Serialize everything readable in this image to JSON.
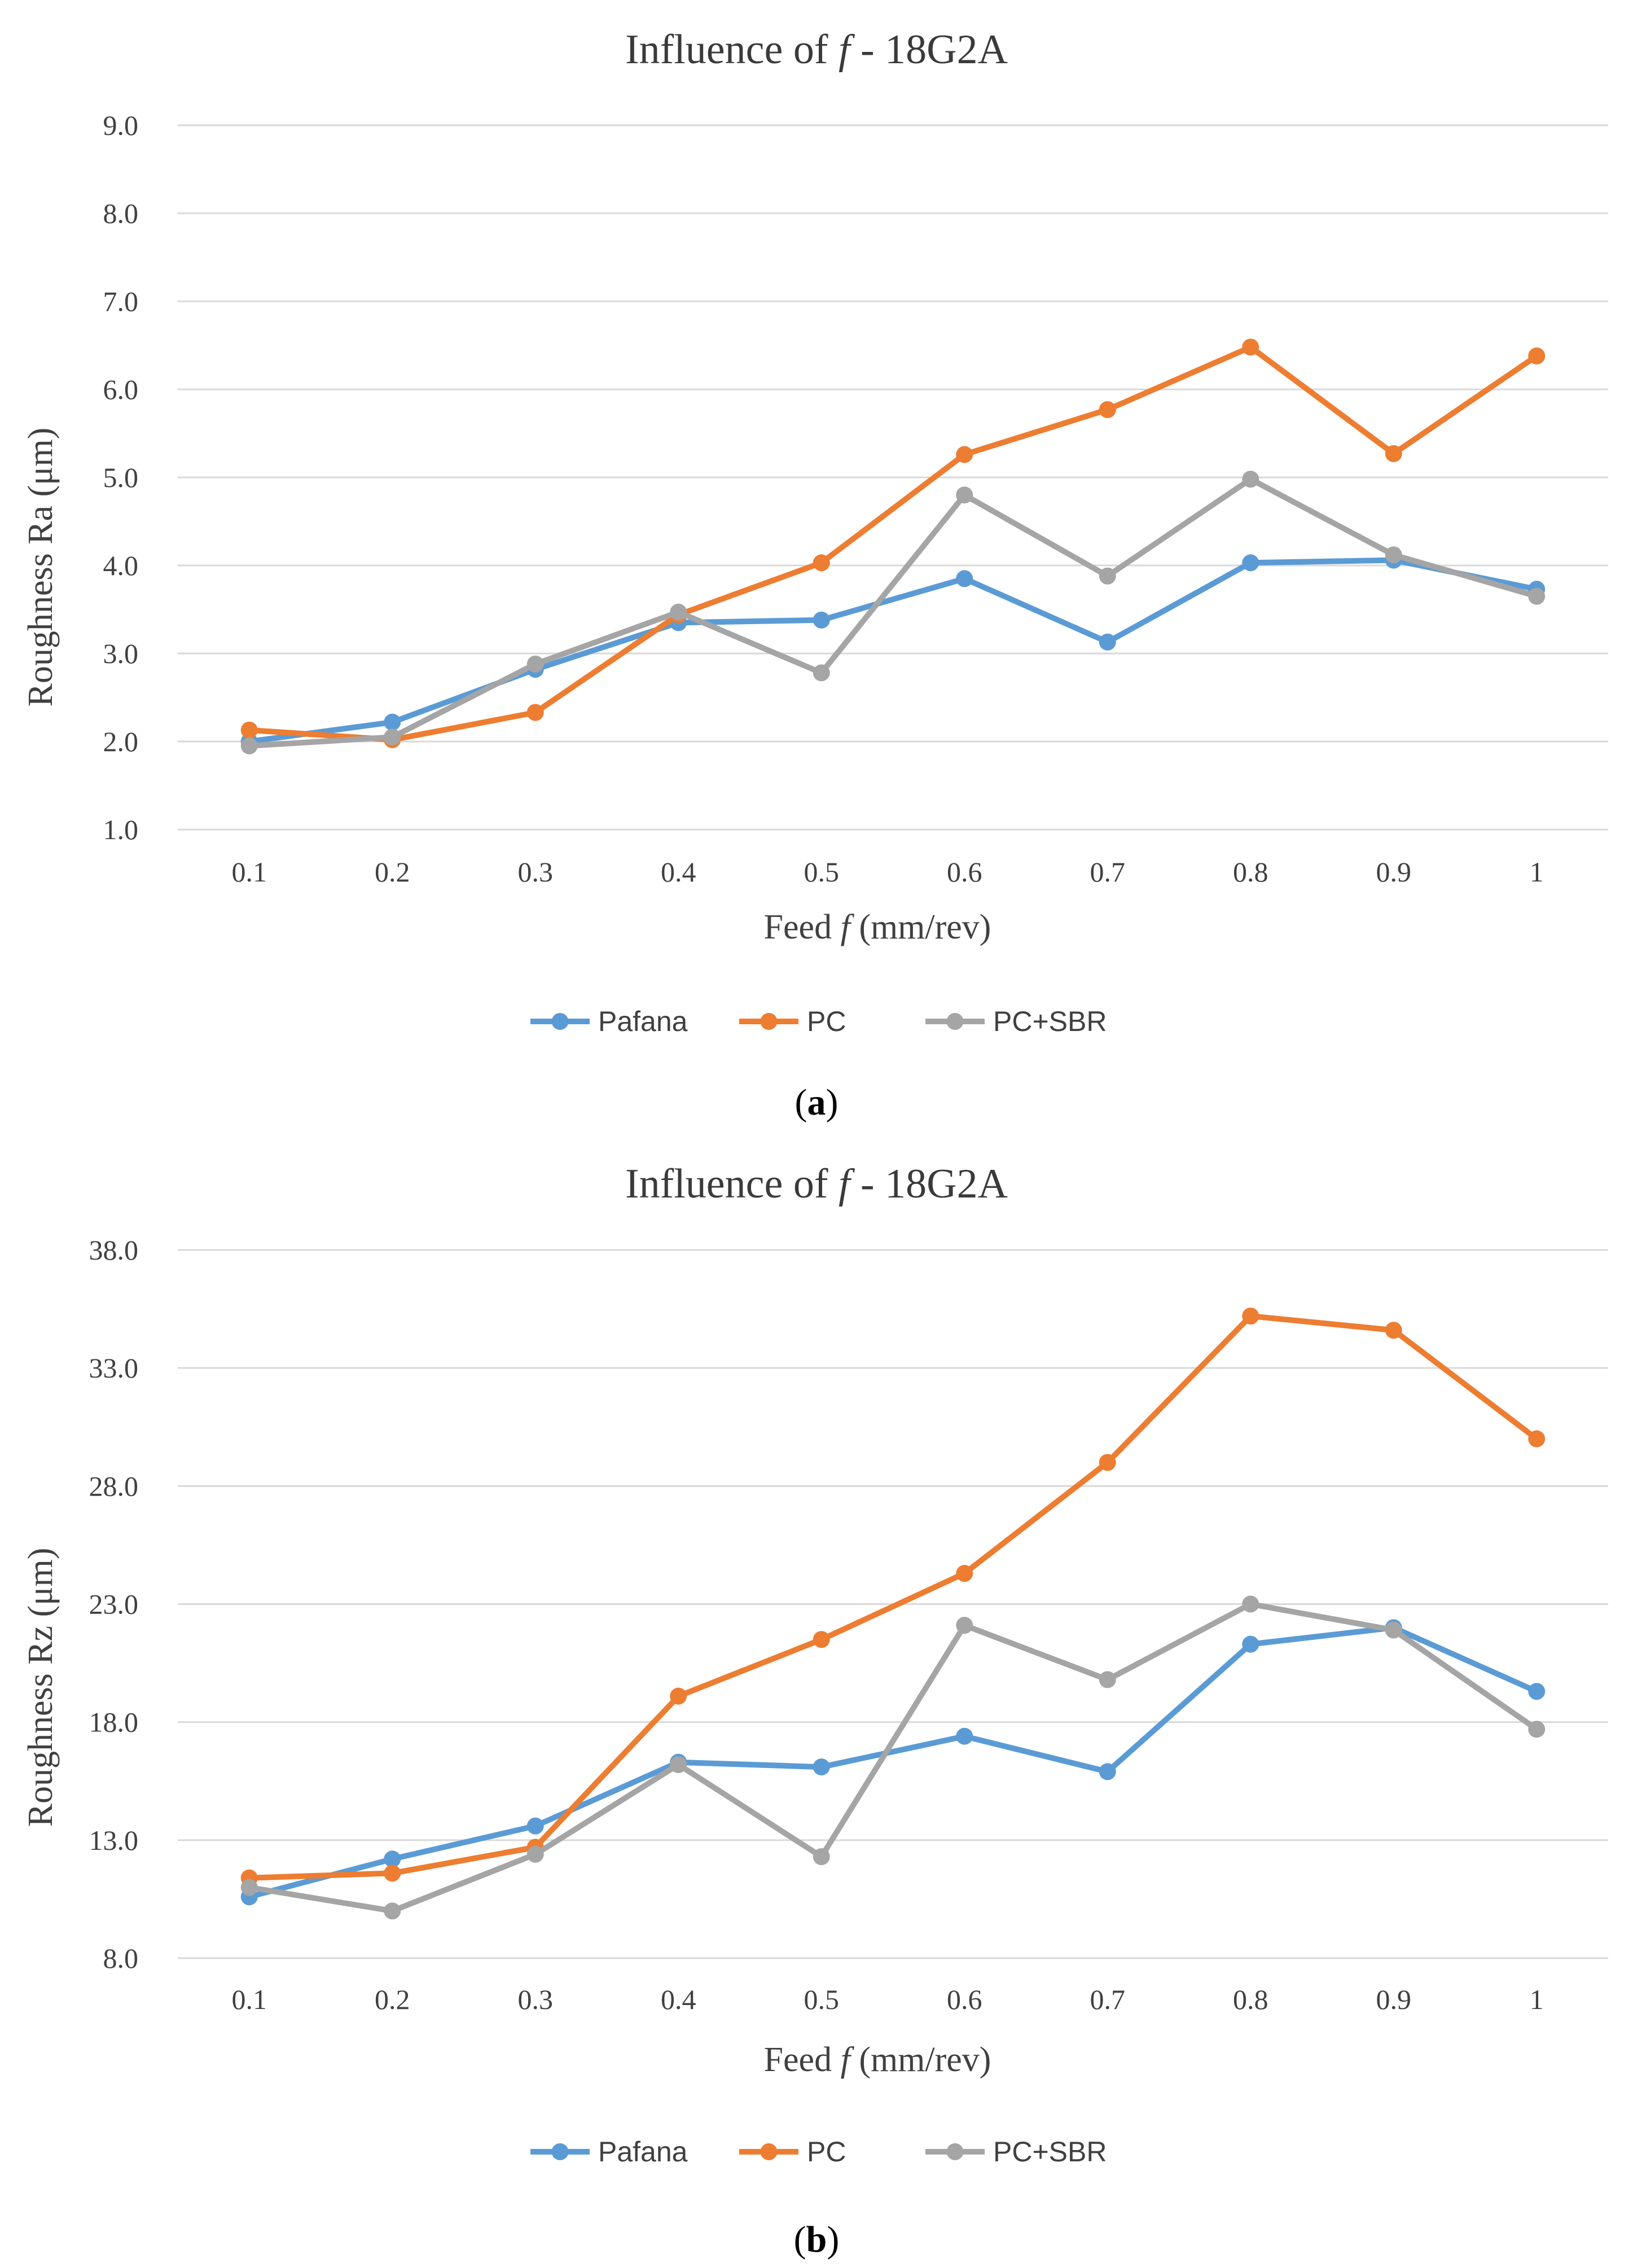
{
  "chart_data": [
    {
      "type": "line",
      "title_prefix": "Influence of ",
      "title_var": "f",
      "title_suffix": " - 18G2A",
      "xlabel_prefix": "Feed ",
      "xlabel_var": "f",
      "xlabel_suffix": " (mm/rev)",
      "ylabel": "Roughness Ra (μm)",
      "categories": [
        "0.1",
        "0.2",
        "0.3",
        "0.4",
        "0.5",
        "0.6",
        "0.7",
        "0.8",
        "0.9",
        "1"
      ],
      "ylim": [
        1.0,
        9.0
      ],
      "yticks": [
        1.0,
        2.0,
        3.0,
        4.0,
        5.0,
        6.0,
        7.0,
        8.0,
        9.0
      ],
      "ytick_labels": [
        "1.0",
        "2.0",
        "3.0",
        "4.0",
        "5.0",
        "6.0",
        "7.0",
        "8.0",
        "9.0"
      ],
      "grid": true,
      "legend_position": "bottom-center",
      "series": [
        {
          "name": "Pafana",
          "color": "#5B9BD5",
          "values": [
            2.0,
            2.22,
            2.82,
            3.35,
            3.38,
            3.85,
            3.13,
            4.03,
            4.06,
            3.73
          ]
        },
        {
          "name": "PC",
          "color": "#ED7D31",
          "values": [
            2.13,
            2.02,
            2.33,
            3.44,
            4.03,
            5.26,
            5.77,
            6.48,
            5.27,
            6.38
          ]
        },
        {
          "name": "PC+SBR",
          "color": "#A5A5A5",
          "values": [
            1.95,
            2.05,
            2.88,
            3.47,
            2.78,
            4.8,
            3.88,
            4.98,
            4.12,
            3.65
          ]
        }
      ],
      "caption": "a"
    },
    {
      "type": "line",
      "title_prefix": "Influence of ",
      "title_var": "f",
      "title_suffix": " - 18G2A",
      "xlabel_prefix": "Feed ",
      "xlabel_var": "f",
      "xlabel_suffix": " (mm/rev)",
      "ylabel": "Roughness Rz (μm)",
      "categories": [
        "0.1",
        "0.2",
        "0.3",
        "0.4",
        "0.5",
        "0.6",
        "0.7",
        "0.8",
        "0.9",
        "1"
      ],
      "ylim": [
        8.0,
        38.0
      ],
      "yticks": [
        8.0,
        13.0,
        18.0,
        23.0,
        28.0,
        33.0,
        38.0
      ],
      "ytick_labels": [
        "8.0",
        "13.0",
        "18.0",
        "23.0",
        "28.0",
        "33.0",
        "38.0"
      ],
      "grid": true,
      "legend_position": "bottom-center",
      "series": [
        {
          "name": "Pafana",
          "color": "#5B9BD5",
          "values": [
            10.6,
            12.2,
            13.6,
            16.3,
            16.1,
            17.4,
            15.9,
            21.3,
            22.0,
            19.3
          ]
        },
        {
          "name": "PC",
          "color": "#ED7D31",
          "values": [
            11.4,
            11.6,
            12.7,
            19.1,
            21.5,
            24.3,
            29.0,
            35.2,
            34.6,
            30.0
          ]
        },
        {
          "name": "PC+SBR",
          "color": "#A5A5A5",
          "values": [
            11.0,
            10.0,
            12.4,
            16.2,
            12.3,
            22.1,
            19.8,
            23.0,
            21.9,
            17.7
          ]
        }
      ],
      "caption": "b"
    }
  ]
}
